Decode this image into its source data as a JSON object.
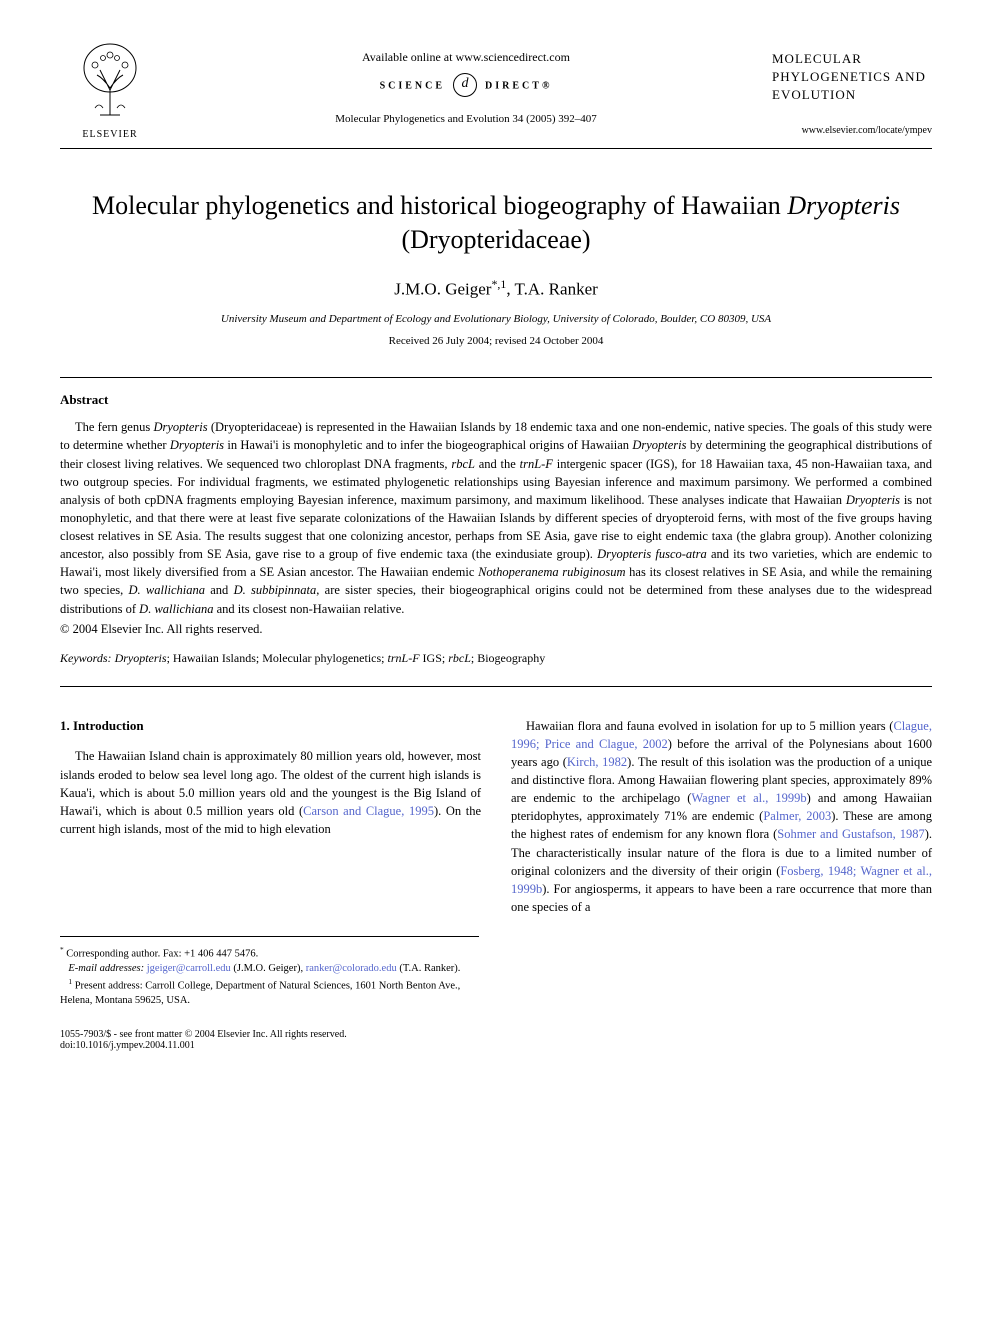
{
  "header": {
    "publisher_name": "ELSEVIER",
    "available_online": "Available online at www.sciencedirect.com",
    "science_direct_left": "SCIENCE",
    "science_direct_right": "DIRECT®",
    "journal_ref": "Molecular Phylogenetics and Evolution 34 (2005) 392–407",
    "journal_name_right": "MOLECULAR PHYLOGENETICS AND EVOLUTION",
    "journal_url": "www.elsevier.com/locate/ympev"
  },
  "title": {
    "prefix": "Molecular phylogenetics and historical biogeography of Hawaiian ",
    "genus": "Dryopteris",
    "suffix": " (Dryopteridaceae)"
  },
  "authors": "J.M.O. Geiger*,1, T.A. Ranker",
  "affiliation": "University Museum and Department of Ecology and Evolutionary Biology, University of Colorado, Boulder, CO 80309, USA",
  "dates": "Received 26 July 2004; revised 24 October 2004",
  "abstract": {
    "heading": "Abstract",
    "text_parts": [
      {
        "t": "The fern genus ",
        "i": false
      },
      {
        "t": "Dryopteris",
        "i": true
      },
      {
        "t": " (Dryopteridaceae) is represented in the Hawaiian Islands by 18 endemic taxa and one non-endemic, native species. The goals of this study were to determine whether ",
        "i": false
      },
      {
        "t": "Dryopteris",
        "i": true
      },
      {
        "t": " in Hawai'i is monophyletic and to infer the biogeographical origins of Hawaiian ",
        "i": false
      },
      {
        "t": "Dryopteris",
        "i": true
      },
      {
        "t": " by determining the geographical distributions of their closest living relatives. We sequenced two chloroplast DNA fragments, ",
        "i": false
      },
      {
        "t": "rbcL",
        "i": true
      },
      {
        "t": " and the ",
        "i": false
      },
      {
        "t": "trnL-F",
        "i": true
      },
      {
        "t": " intergenic spacer (IGS), for 18 Hawaiian taxa, 45 non-Hawaiian taxa, and two outgroup species. For individual fragments, we estimated phylogenetic relationships using Bayesian inference and maximum parsimony. We performed a combined analysis of both cpDNA fragments employing Bayesian inference, maximum parsimony, and maximum likelihood. These analyses indicate that Hawaiian ",
        "i": false
      },
      {
        "t": "Dryopteris",
        "i": true
      },
      {
        "t": " is not monophyletic, and that there were at least five separate colonizations of the Hawaiian Islands by different species of dryopteroid ferns, with most of the five groups having closest relatives in SE Asia. The results suggest that one colonizing ancestor, perhaps from SE Asia, gave rise to eight endemic taxa (the glabra group). Another colonizing ancestor, also possibly from SE Asia, gave rise to a group of five endemic taxa (the exindusiate group). ",
        "i": false
      },
      {
        "t": "Dryopteris fusco-atra",
        "i": true
      },
      {
        "t": " and its two varieties, which are endemic to Hawai'i, most likely diversified from a SE Asian ancestor. The Hawaiian endemic ",
        "i": false
      },
      {
        "t": "Nothoperanema rubiginosum",
        "i": true
      },
      {
        "t": " has its closest relatives in SE Asia, and while the remaining two species, ",
        "i": false
      },
      {
        "t": "D. wallichiana",
        "i": true
      },
      {
        "t": " and ",
        "i": false
      },
      {
        "t": "D. subbipinnata",
        "i": true
      },
      {
        "t": ", are sister species, their biogeographical origins could not be determined from these analyses due to the widespread distributions of ",
        "i": false
      },
      {
        "t": "D. wallichiana",
        "i": true
      },
      {
        "t": " and its closest non-Hawaiian relative.",
        "i": false
      }
    ],
    "copyright": "© 2004 Elsevier Inc. All rights reserved."
  },
  "keywords": {
    "label": "Keywords: ",
    "text_parts": [
      {
        "t": "Dryopteris",
        "i": true
      },
      {
        "t": "; Hawaiian Islands; Molecular phylogenetics; ",
        "i": false
      },
      {
        "t": "trnL-F",
        "i": true
      },
      {
        "t": " IGS; ",
        "i": false
      },
      {
        "t": "rbcL",
        "i": true
      },
      {
        "t": "; Biogeography",
        "i": false
      }
    ]
  },
  "introduction": {
    "heading": "1. Introduction",
    "col1_parts": [
      {
        "t": "The Hawaiian Island chain is approximately 80 million years old, however, most islands eroded to below sea level long ago. The oldest of the current high islands is Kaua'i, which is about 5.0 million years old and the youngest is the Big Island of Hawai'i, which is about 0.5 million years old (",
        "link": false
      },
      {
        "t": "Carson and Clague, 1995",
        "link": true
      },
      {
        "t": "). On the current high islands, most of the mid to high elevation",
        "link": false
      }
    ],
    "col2_parts": [
      {
        "t": "Hawaiian flora and fauna evolved in isolation for up to 5 million years (",
        "link": false
      },
      {
        "t": "Clague, 1996; Price and Clague, 2002",
        "link": true
      },
      {
        "t": ") before the arrival of the Polynesians about 1600 years ago (",
        "link": false
      },
      {
        "t": "Kirch, 1982",
        "link": true
      },
      {
        "t": "). The result of this isolation was the production of a unique and distinctive flora. Among Hawaiian flowering plant species, approximately 89% are endemic to the archipelago (",
        "link": false
      },
      {
        "t": "Wagner et al., 1999b",
        "link": true
      },
      {
        "t": ") and among Hawaiian pteridophytes, approximately 71% are endemic (",
        "link": false
      },
      {
        "t": "Palmer, 2003",
        "link": true
      },
      {
        "t": "). These are among the highest rates of endemism for any known flora (",
        "link": false
      },
      {
        "t": "Sohmer and Gustafson, 1987",
        "link": true
      },
      {
        "t": "). The characteristically insular nature of the flora is due to a limited number of original colonizers and the diversity of their origin (",
        "link": false
      },
      {
        "t": "Fosberg, 1948; Wagner et al., 1999b",
        "link": true
      },
      {
        "t": "). For angiosperms, it appears to have been a rare occurrence that more than one species of a",
        "link": false
      }
    ]
  },
  "footnotes": {
    "corresponding": "* Corresponding author. Fax: +1 406 447 5476.",
    "email_label": "E-mail addresses:",
    "email1": "jgeiger@carroll.edu",
    "email1_name": "(J.M.O. Geiger),",
    "email2": "ranker@colorado.edu",
    "email2_name": "(T.A. Ranker).",
    "present_address": "1 Present address: Carroll College, Department of Natural Sciences, 1601 North Benton Ave., Helena, Montana 59625, USA."
  },
  "footer": {
    "issn": "1055-7903/$ - see front matter © 2004 Elsevier Inc. All rights reserved.",
    "doi": "doi:10.1016/j.ympev.2004.11.001"
  },
  "colors": {
    "link": "#5566cc",
    "text": "#000000",
    "background": "#ffffff"
  }
}
